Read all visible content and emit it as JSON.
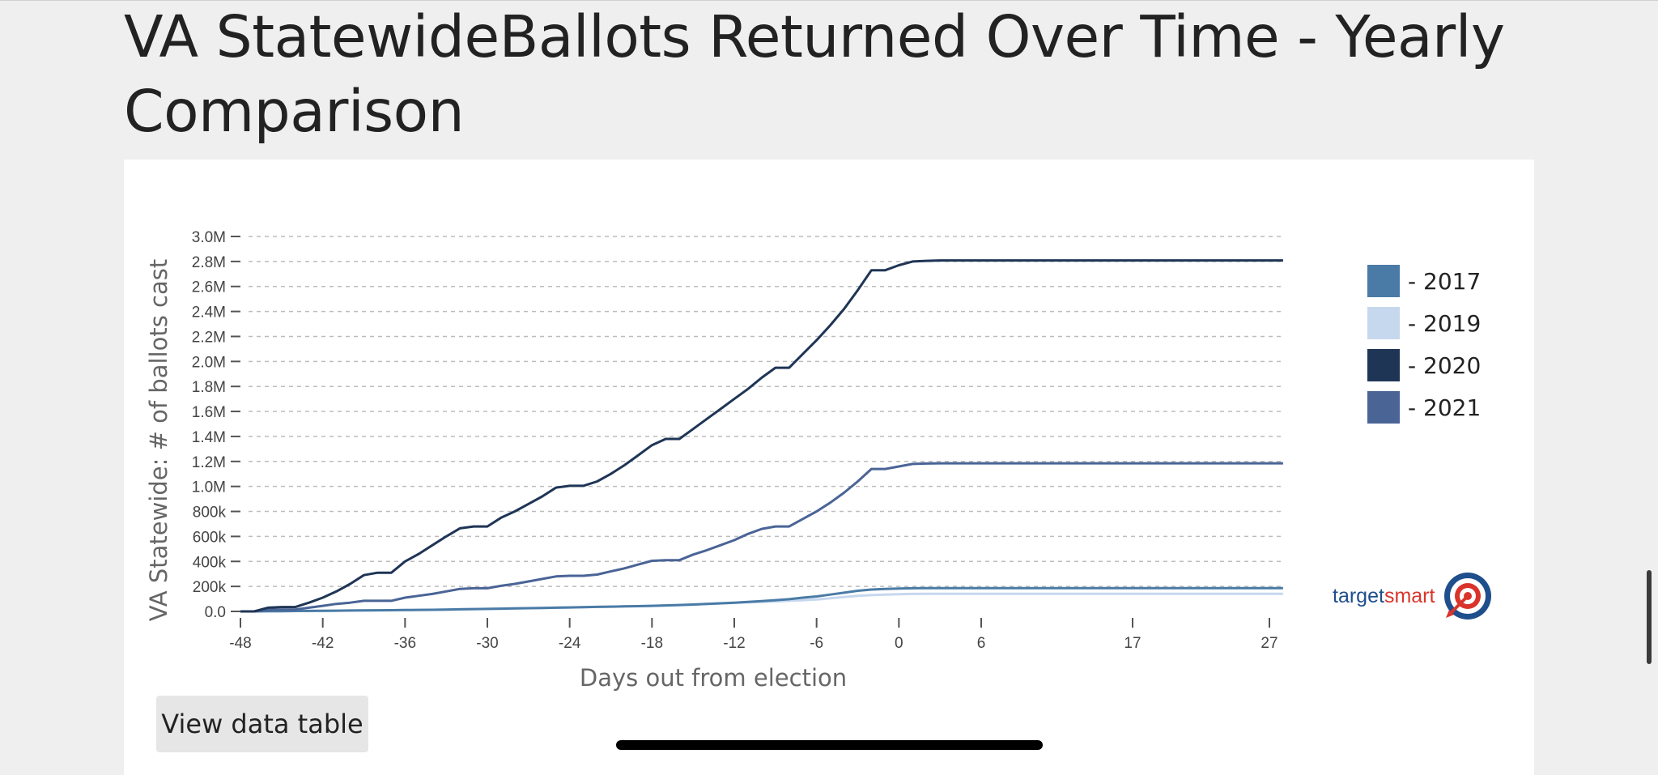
{
  "page": {
    "title": "VA StatewideBallots Returned Over Time - Yearly Comparison",
    "view_table_label": "View data table"
  },
  "brand": {
    "part1": "target",
    "part2": "smart"
  },
  "chart_data": {
    "type": "line",
    "xlabel": "Days out from election",
    "ylabel": "VA Statewide: # of ballots cast",
    "ylim": [
      0,
      3000000
    ],
    "yticks": [
      0,
      200000,
      400000,
      600000,
      800000,
      1000000,
      1200000,
      1400000,
      1600000,
      1800000,
      2000000,
      2200000,
      2400000,
      2600000,
      2800000,
      3000000
    ],
    "ytick_labels": [
      "0.0",
      "200k",
      "400k",
      "600k",
      "800k",
      "1.0M",
      "1.2M",
      "1.4M",
      "1.6M",
      "1.8M",
      "2.0M",
      "2.2M",
      "2.4M",
      "2.6M",
      "2.8M",
      "3.0M"
    ],
    "xtick_labels": [
      "-48",
      "-42",
      "-36",
      "-30",
      "-24",
      "-18",
      "-12",
      "-6",
      "0",
      "6",
      "17",
      "27"
    ],
    "grid": true,
    "legend_position": "right",
    "x": [
      -48,
      -47,
      -46,
      -45,
      -44,
      -43,
      -42,
      -41,
      -40,
      -39,
      -38,
      -37,
      -36,
      -35,
      -34,
      -33,
      -32,
      -31,
      -30,
      -29,
      -28,
      -27,
      -26,
      -25,
      -24,
      -23,
      -22,
      -21,
      -20,
      -19,
      -18,
      -17,
      -16,
      -15,
      -14,
      -13,
      -12,
      -11,
      -10,
      -9,
      -8,
      -7,
      -6,
      -5,
      -4,
      -3,
      -2,
      -1,
      0,
      1,
      2,
      3,
      4,
      5,
      6,
      7,
      8,
      9,
      10,
      11,
      12,
      13,
      14,
      15,
      16,
      17,
      18,
      19,
      20,
      21,
      22,
      23,
      24,
      25,
      26,
      27,
      28
    ],
    "series": [
      {
        "name": "2017",
        "color": "#4a7ba6",
        "values": [
          0,
          0,
          1000,
          2000,
          3000,
          4000,
          5000,
          6000,
          7000,
          8000,
          9000,
          10000,
          11000,
          12000,
          13000,
          15000,
          17000,
          19000,
          20000,
          22000,
          24000,
          26000,
          28000,
          30000,
          32000,
          34000,
          36000,
          38000,
          40000,
          42000,
          45000,
          48000,
          51000,
          55000,
          60000,
          65000,
          70000,
          76000,
          82000,
          90000,
          98000,
          110000,
          120000,
          135000,
          150000,
          165000,
          175000,
          180000,
          183000,
          185000,
          186000,
          186000,
          186000,
          186000,
          186000,
          186000,
          186000,
          186000,
          186000,
          186000,
          186000,
          186000,
          186000,
          186000,
          186000,
          186000,
          186000,
          186000,
          186000,
          186000,
          186000,
          186000,
          186000,
          186000,
          186000,
          186000,
          186000
        ]
      },
      {
        "name": "2019",
        "color": "#c6d8ee",
        "values": [
          0,
          0,
          1000,
          2000,
          3000,
          4000,
          5000,
          6000,
          7000,
          8000,
          9000,
          10000,
          11000,
          12000,
          13000,
          15000,
          17000,
          19000,
          20000,
          22000,
          24000,
          26000,
          28000,
          30000,
          32000,
          34000,
          36000,
          38000,
          40000,
          42000,
          45000,
          48000,
          51000,
          55000,
          60000,
          64000,
          68000,
          72000,
          76000,
          80000,
          85000,
          90000,
          95000,
          105000,
          115000,
          125000,
          130000,
          135000,
          138000,
          140000,
          141000,
          141000,
          141000,
          141000,
          141000,
          141000,
          141000,
          141000,
          141000,
          141000,
          141000,
          141000,
          141000,
          141000,
          141000,
          141000,
          141000,
          141000,
          141000,
          141000,
          141000,
          141000,
          141000,
          141000,
          141000,
          141000,
          141000
        ]
      },
      {
        "name": "2020",
        "color": "#1f3556",
        "values": [
          0,
          0,
          30000,
          35000,
          35000,
          70000,
          110000,
          160000,
          220000,
          290000,
          310000,
          310000,
          400000,
          460000,
          530000,
          600000,
          665000,
          680000,
          680000,
          750000,
          800000,
          860000,
          920000,
          990000,
          1005000,
          1005000,
          1040000,
          1100000,
          1170000,
          1250000,
          1330000,
          1380000,
          1380000,
          1460000,
          1540000,
          1620000,
          1700000,
          1780000,
          1870000,
          1950000,
          1950000,
          2060000,
          2170000,
          2290000,
          2420000,
          2570000,
          2730000,
          2730000,
          2770000,
          2800000,
          2805000,
          2808000,
          2808000,
          2808000,
          2808000,
          2808000,
          2808000,
          2808000,
          2808000,
          2808000,
          2808000,
          2808000,
          2808000,
          2808000,
          2808000,
          2808000,
          2808000,
          2808000,
          2808000,
          2808000,
          2808000,
          2808000,
          2808000,
          2808000,
          2808000,
          2808000,
          2808000
        ]
      },
      {
        "name": "2021",
        "color": "#4a6496",
        "values": [
          0,
          0,
          12000,
          15000,
          15000,
          30000,
          45000,
          60000,
          70000,
          85000,
          85000,
          85000,
          110000,
          125000,
          140000,
          160000,
          180000,
          185000,
          185000,
          205000,
          220000,
          240000,
          260000,
          280000,
          285000,
          285000,
          295000,
          320000,
          345000,
          375000,
          405000,
          410000,
          410000,
          455000,
          490000,
          530000,
          570000,
          620000,
          660000,
          680000,
          680000,
          740000,
          800000,
          870000,
          950000,
          1040000,
          1140000,
          1140000,
          1160000,
          1180000,
          1183000,
          1185000,
          1185000,
          1185000,
          1185000,
          1185000,
          1185000,
          1185000,
          1185000,
          1185000,
          1185000,
          1185000,
          1185000,
          1185000,
          1185000,
          1185000,
          1185000,
          1185000,
          1185000,
          1185000,
          1185000,
          1185000,
          1185000,
          1185000,
          1185000,
          1185000,
          1185000
        ]
      }
    ]
  }
}
